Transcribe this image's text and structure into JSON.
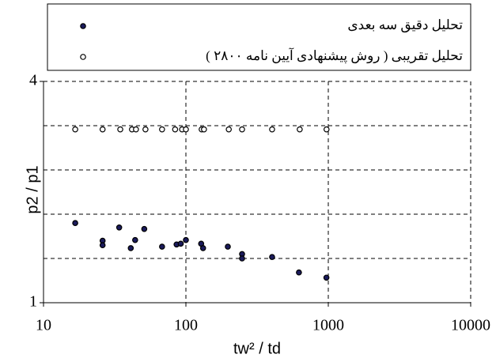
{
  "chart_data": {
    "type": "scatter",
    "xlabel": "tw² / td",
    "ylabel": "p2 / p1",
    "xscale": "log",
    "xlim": [
      10,
      10000
    ],
    "xticks": [
      10,
      100,
      1000,
      10000
    ],
    "ylim": [
      1,
      4
    ],
    "yticks": [
      1,
      4
    ],
    "ygrid": [
      1.6,
      2.2,
      2.8,
      3.4
    ],
    "grid": true,
    "series": [
      {
        "name": "تحليل دقيق سه بعدی",
        "color": "#1b1b5c",
        "marker": "filled",
        "x": [
          16.7,
          26,
          26,
          34,
          41,
          44,
          51,
          68,
          86,
          92,
          100,
          128,
          132,
          197,
          248,
          248,
          403,
          622,
          970
        ],
        "values": [
          2.08,
          1.84,
          1.78,
          2.02,
          1.74,
          1.85,
          2.0,
          1.76,
          1.79,
          1.8,
          1.85,
          1.8,
          1.74,
          1.76,
          1.66,
          1.6,
          1.62,
          1.41,
          1.34
        ]
      },
      {
        "name": "تحليل تقريبی ( روش پيشنهادی آيين نامه ۲۸۰۰ )",
        "color": "#000000",
        "marker": "open",
        "x": [
          16.7,
          26,
          34.6,
          41.8,
          44.6,
          52,
          68,
          84,
          94,
          100,
          129,
          134,
          200,
          248,
          403,
          630,
          972
        ],
        "values": [
          3.35,
          3.35,
          3.35,
          3.35,
          3.35,
          3.35,
          3.35,
          3.35,
          3.35,
          3.35,
          3.35,
          3.35,
          3.35,
          3.35,
          3.35,
          3.35,
          3.35
        ]
      }
    ]
  }
}
